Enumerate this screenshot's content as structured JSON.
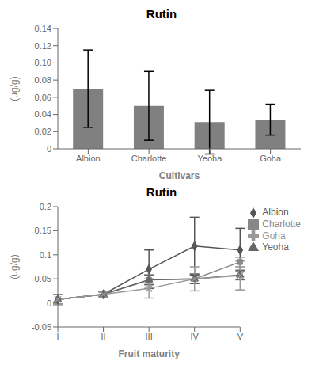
{
  "chart_data": [
    {
      "type": "bar",
      "title": "Rutin",
      "x_label": "Cultivars",
      "y_label": "(ug/g)",
      "categories": [
        "Albion",
        "Charlotte",
        "Yeoha",
        "Goha"
      ],
      "values": [
        0.07,
        0.05,
        0.031,
        0.034
      ],
      "errors": [
        0.045,
        0.04,
        0.037,
        0.018
      ],
      "color": "#808080",
      "ylim": [
        0,
        0.14
      ],
      "yticks": [
        0,
        0.02,
        0.04,
        0.06,
        0.08,
        {
          "value": 0.1,
          "label": "0.10"
        },
        0.12,
        0.14
      ],
      "grid": false
    },
    {
      "type": "line",
      "title": "Rutin",
      "x_label": "Fruit maturity",
      "y_label": "(ug/g)",
      "categories": [
        "I",
        "II",
        "III",
        "IV",
        "V"
      ],
      "ylim": [
        -0.05,
        0.2
      ],
      "yticks": [
        -0.05,
        0,
        0.05,
        0.1,
        0.15,
        0.2
      ],
      "grid": false,
      "legend": "right",
      "series": [
        {
          "name": "Albion",
          "color": "#555555",
          "marker": "diamond",
          "values": [
            0.007,
            0.018,
            0.07,
            0.118,
            0.11
          ],
          "errors": [
            0.01,
            0.005,
            0.04,
            0.06,
            0.045
          ]
        },
        {
          "name": "Charlotte",
          "color": "#888888",
          "marker": "square",
          "values": [
            0.007,
            0.018,
            0.048,
            0.05,
            0.085
          ],
          "errors": [
            0.01,
            0.005,
            0.01,
            0.01,
            0.01
          ]
        },
        {
          "name": "Yeoha",
          "color": "#666666",
          "marker": "triangle",
          "values": [
            0.007,
            0.018,
            0.048,
            0.05,
            0.058
          ],
          "errors": [
            0.01,
            0.005,
            0.01,
            0.01,
            0.01
          ]
        },
        {
          "name": "Goha",
          "color": "#999999",
          "marker": "x",
          "values": [
            0.007,
            0.018,
            0.03,
            0.05,
            0.057
          ],
          "errors": [
            0.01,
            0.005,
            0.02,
            0.025,
            0.03
          ]
        }
      ]
    }
  ]
}
